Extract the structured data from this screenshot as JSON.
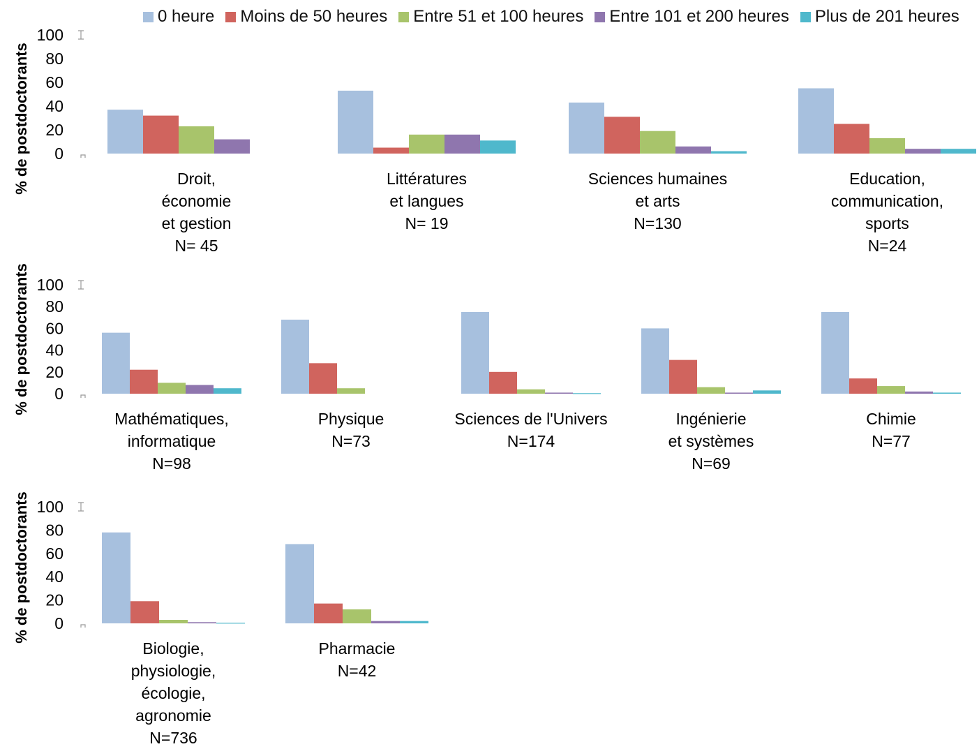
{
  "chart_data": {
    "type": "bar",
    "ylabel": "% de postdoctorants",
    "ylim": [
      0,
      100
    ],
    "yticks": [
      0,
      20,
      40,
      60,
      80,
      100
    ],
    "grid": false,
    "legend_position": "top",
    "series": [
      {
        "name": "0 heure",
        "color": "#A7C0DE"
      },
      {
        "name": "Moins de 50 heures",
        "color": "#D0645E"
      },
      {
        "name": "Entre 51 et 100 heures",
        "color": "#A8C46B"
      },
      {
        "name": "Entre 101 et 200 heures",
        "color": "#8F76AE"
      },
      {
        "name": "Plus de 201 heures",
        "color": "#4FB8CC"
      }
    ],
    "panels": [
      {
        "label": [
          "Droit,",
          "économie",
          "et gestion",
          "N= 45"
        ],
        "values": [
          37,
          32,
          23,
          12,
          0
        ]
      },
      {
        "label": [
          "Littératures",
          "et langues",
          "N= 19"
        ],
        "values": [
          53,
          5,
          16,
          16,
          11
        ]
      },
      {
        "label": [
          "Sciences humaines",
          "et arts",
          "N=130"
        ],
        "values": [
          43,
          31,
          19,
          6,
          2
        ]
      },
      {
        "label": [
          "Education,",
          "communication,",
          "sports",
          "N=24"
        ],
        "values": [
          55,
          25,
          13,
          4,
          4
        ]
      },
      {
        "label": [
          "Mathématiques,",
          "informatique",
          "N=98"
        ],
        "values": [
          56,
          22,
          10,
          8,
          5
        ]
      },
      {
        "label": [
          "Physique",
          "N=73"
        ],
        "values": [
          68,
          28,
          5,
          0,
          0
        ]
      },
      {
        "label": [
          "Sciences de l'Univers",
          "N=174"
        ],
        "values": [
          75,
          20,
          4,
          1,
          0.5
        ]
      },
      {
        "label": [
          "Ingénierie",
          "et systèmes",
          "N=69"
        ],
        "values": [
          60,
          31,
          6,
          1,
          3
        ]
      },
      {
        "label": [
          "Chimie",
          "N=77"
        ],
        "values": [
          75,
          14,
          7,
          2,
          1
        ]
      },
      {
        "label": [
          "Biologie,",
          "physiologie,",
          "écologie,",
          "agronomie",
          "N=736"
        ],
        "values": [
          78,
          19,
          3,
          1,
          0.5
        ]
      },
      {
        "label": [
          "Pharmacie",
          "N=42"
        ],
        "values": [
          68,
          17,
          12,
          2,
          2
        ]
      }
    ]
  }
}
